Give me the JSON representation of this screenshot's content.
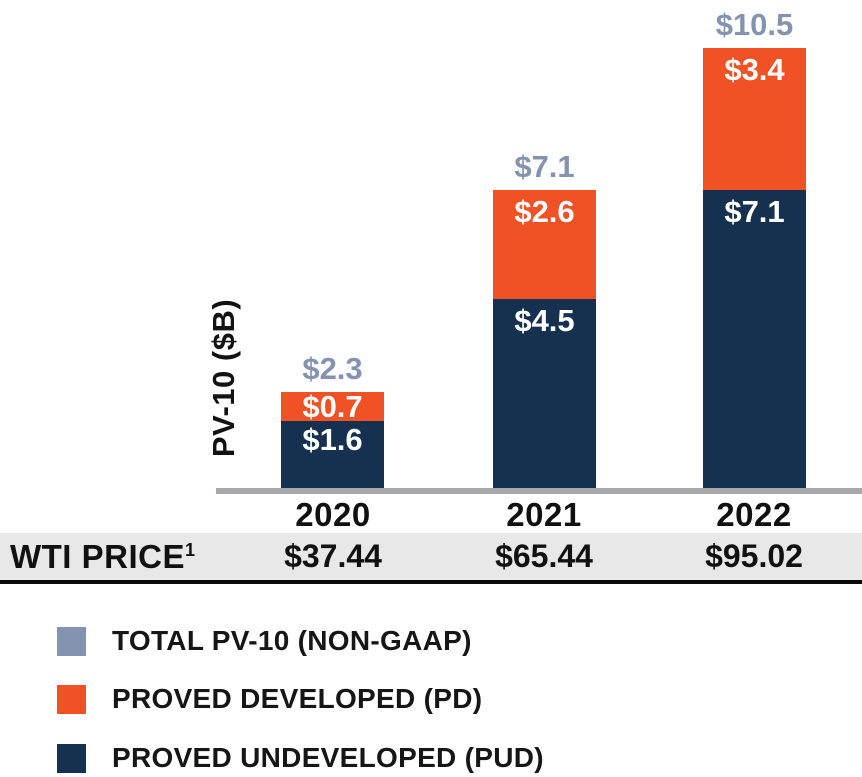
{
  "chart_data": {
    "type": "bar",
    "stacked": true,
    "title": "",
    "ylabel": "PV-10 ($B)",
    "xlabel": "",
    "categories": [
      "2020",
      "2021",
      "2022"
    ],
    "series": [
      {
        "name": "PROVED UNDEVELOPED (PUD)",
        "values": [
          1.6,
          4.5,
          7.1
        ],
        "color": "#16304F"
      },
      {
        "name": "PROVED DEVELOPED (PD)",
        "values": [
          0.7,
          2.6,
          3.4
        ],
        "color": "#F05125"
      }
    ],
    "totals": [
      2.3,
      7.1,
      10.5
    ],
    "ylim": [
      0,
      10.5
    ],
    "grid": false,
    "legend_position": "bottom-left",
    "annotation_row": {
      "label": "WTI PRICE",
      "footnote": "1",
      "values": [
        37.44,
        65.44,
        95.02
      ]
    }
  },
  "axis": {
    "ylabel": "PV-10 ($B)"
  },
  "bars": [
    {
      "year": "2020",
      "total": "$2.3",
      "pd": "$0.7",
      "pud": "$1.6",
      "wti": "$37.44"
    },
    {
      "year": "2021",
      "total": "$7.1",
      "pd": "$2.6",
      "pud": "$4.5",
      "wti": "$65.44"
    },
    {
      "year": "2022",
      "total": "$10.5",
      "pd": "$3.4",
      "pud": "$7.1",
      "wti": "$95.02"
    }
  ],
  "wti_row": {
    "label": "WTI PRICE",
    "superscript": "1"
  },
  "legend": {
    "items": [
      {
        "label": "TOTAL PV-10 (NON-GAAP)",
        "color": "#8493AF"
      },
      {
        "label": "PROVED DEVELOPED (PD)",
        "color": "#F05125"
      },
      {
        "label": "PROVED UNDEVELOPED (PUD)",
        "color": "#16304F"
      }
    ]
  },
  "colors": {
    "pud_navy": "#16304F",
    "pd_orange": "#F05125",
    "total_label": "#8493AF",
    "axis_line": "#A6A8AB",
    "wti_band_bg": "#E8E8E8",
    "wti_band_border": "#0A0A0A",
    "text_black": "#111111"
  }
}
